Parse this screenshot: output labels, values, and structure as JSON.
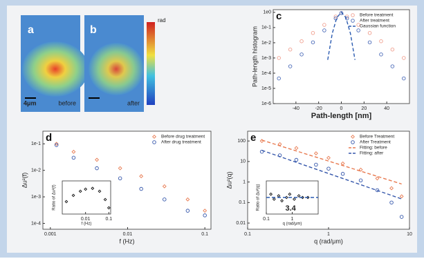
{
  "panels": {
    "a": {
      "label": "a",
      "scale": "4μm",
      "caption": "before"
    },
    "b": {
      "label": "b",
      "caption": "after"
    },
    "colorbar": {
      "title": "rad"
    }
  },
  "chart_data": [
    {
      "type": "scatter",
      "label": "c",
      "xlabel": "Path-length [nm]",
      "ylabel": "Path-length histogram",
      "xlog": false,
      "ylog": true,
      "xlim": [
        -60,
        60
      ],
      "ylim": [
        1e-06,
        1.5
      ],
      "xticks": [
        -40,
        -20,
        0,
        20,
        40
      ],
      "yticks": [
        {
          "value": 1,
          "label": "1e0"
        },
        {
          "value": 0.1,
          "label": "1e-1"
        },
        {
          "value": 0.01,
          "label": "1e-2"
        },
        {
          "value": 0.001,
          "label": "1e-3"
        },
        {
          "value": 0.0001,
          "label": "1e-4"
        },
        {
          "value": 1e-05,
          "label": "1e-5"
        },
        {
          "value": 1e-06,
          "label": "1e-6"
        }
      ],
      "legend": "upper right",
      "series": [
        {
          "name": "Before treatment",
          "color": "#f0a090",
          "marker": "circle",
          "x": [
            -55,
            -45,
            -35,
            -25,
            -15,
            -5,
            0,
            5,
            15,
            25,
            35,
            45,
            55
          ],
          "values": [
            0.001,
            0.0036,
            0.0126,
            0.044,
            0.15,
            0.53,
            0.9,
            0.53,
            0.15,
            0.044,
            0.0126,
            0.0036,
            0.001
          ]
        },
        {
          "name": "After treatment",
          "color": "#4a6ab8",
          "marker": "circle",
          "x": [
            -55,
            -45,
            -35,
            -25,
            -15,
            -5,
            0,
            5,
            15,
            25,
            35,
            45,
            55
          ],
          "values": [
            4.5e-05,
            0.00028,
            0.0017,
            0.0106,
            0.065,
            0.4,
            0.9,
            0.4,
            0.065,
            0.0106,
            0.0017,
            0.00028,
            4.5e-05
          ]
        },
        {
          "name": "Gaussian function",
          "color": "#2a5ab0",
          "marker": "dashed",
          "x": [
            -12,
            -8,
            -4,
            0,
            4,
            8,
            12
          ],
          "values": [
            0.00075,
            0.041,
            0.45,
            1,
            0.45,
            0.041,
            0.00075
          ]
        }
      ]
    },
    {
      "type": "scatter",
      "label": "d",
      "xlabel": "f (Hz)",
      "ylabel": "Δu²(f)",
      "xlog": true,
      "ylog": true,
      "xlim": [
        0.0008,
        0.12
      ],
      "ylim": [
        6e-05,
        0.3
      ],
      "xticks": [
        0.001,
        0.01,
        0.1
      ],
      "yticks": [
        {
          "value": 0.1,
          "label": "1e-1"
        },
        {
          "value": 0.01,
          "label": "1e-2"
        },
        {
          "value": 0.001,
          "label": "1e-3"
        },
        {
          "value": 0.0001,
          "label": "1e-4"
        }
      ],
      "legend": "upper right",
      "series": [
        {
          "name": "Before drug treatment",
          "color": "#e87a50",
          "marker": "diamond",
          "x": [
            0.0012,
            0.002,
            0.004,
            0.008,
            0.015,
            0.03,
            0.06,
            0.1
          ],
          "values": [
            0.1,
            0.05,
            0.025,
            0.012,
            0.006,
            0.0025,
            0.0008,
            0.0003
          ]
        },
        {
          "name": "After drug treatment",
          "color": "#3355aa",
          "marker": "circle",
          "x": [
            0.0012,
            0.002,
            0.004,
            0.008,
            0.015,
            0.03,
            0.06,
            0.1
          ],
          "values": [
            0.09,
            0.03,
            0.012,
            0.005,
            0.002,
            0.0008,
            0.0003,
            0.0002
          ]
        }
      ]
    },
    {
      "type": "scatter",
      "xlabel": "f (Hz)",
      "ylabel": "Ratio of Δu²(f)",
      "xlog": true,
      "ylog": false,
      "xlim": [
        0.001,
        0.12
      ],
      "ylim": [
        0,
        0.8
      ],
      "xticks": [
        0.01,
        0.1
      ],
      "series": [
        {
          "color": "#111111",
          "marker": "diamond",
          "x": [
            0.0015,
            0.003,
            0.006,
            0.01,
            0.02,
            0.04,
            0.07,
            0.1
          ],
          "values": [
            0.3,
            0.45,
            0.55,
            0.6,
            0.62,
            0.55,
            0.35,
            0.15
          ]
        }
      ]
    },
    {
      "type": "scatter",
      "label": "e",
      "xlabel": "q (rad/μm)",
      "ylabel": "Δu²(q)",
      "xlog": true,
      "ylog": true,
      "xlim": [
        0.1,
        10
      ],
      "ylim": [
        0.005,
        300
      ],
      "xticks": [
        0.1,
        1,
        10
      ],
      "yticks": [
        100,
        10,
        1,
        0.1,
        0.01
      ],
      "legend": "upper right",
      "series": [
        {
          "name": "Before Treatment",
          "color": "#e87a50",
          "marker": "diamond",
          "x": [
            0.15,
            0.25,
            0.4,
            0.7,
            1,
            1.5,
            2.5,
            4,
            6,
            8
          ],
          "values": [
            100,
            70,
            45,
            25,
            15,
            8,
            4,
            1.5,
            0.5,
            0.2
          ]
        },
        {
          "name": "After Treatment",
          "color": "#3355aa",
          "marker": "circle",
          "x": [
            0.15,
            0.25,
            0.4,
            0.7,
            1,
            1.5,
            2.5,
            4,
            6,
            8
          ],
          "values": [
            30,
            20,
            12,
            7,
            4.5,
            2.5,
            1.2,
            0.4,
            0.1,
            0.02
          ]
        },
        {
          "name": "Fitting: before",
          "color": "#e87a50",
          "marker": "dashed",
          "x": [
            0.15,
            8
          ],
          "values": [
            110,
            0.8
          ]
        },
        {
          "name": "Fitting: after",
          "color": "#3355aa",
          "marker": "dashed",
          "x": [
            0.15,
            8
          ],
          "values": [
            35,
            0.15
          ]
        }
      ]
    },
    {
      "type": "scatter",
      "xlabel": "q (rad/μm)",
      "ylabel": "Ratio of Δu²(q)",
      "xlog": true,
      "ylog": false,
      "xlim": [
        0.1,
        10
      ],
      "ylim": [
        0,
        1
      ],
      "xticks": [
        0.1,
        1
      ],
      "annotations": [
        "3.4"
      ],
      "series": [
        {
          "color": "#111111",
          "marker": "diamond",
          "x": [
            0.15,
            0.2,
            0.3,
            0.4,
            0.6,
            0.8,
            1.2,
            1.8,
            2.5,
            4
          ],
          "values": [
            0.6,
            0.45,
            0.55,
            0.4,
            0.5,
            0.6,
            0.45,
            0.55,
            0.5,
            0.5
          ]
        },
        {
          "color": "#2a5ab0",
          "marker": "dashed",
          "x": [
            0.1,
            10
          ],
          "values": [
            0.5,
            0.5
          ]
        }
      ]
    }
  ]
}
